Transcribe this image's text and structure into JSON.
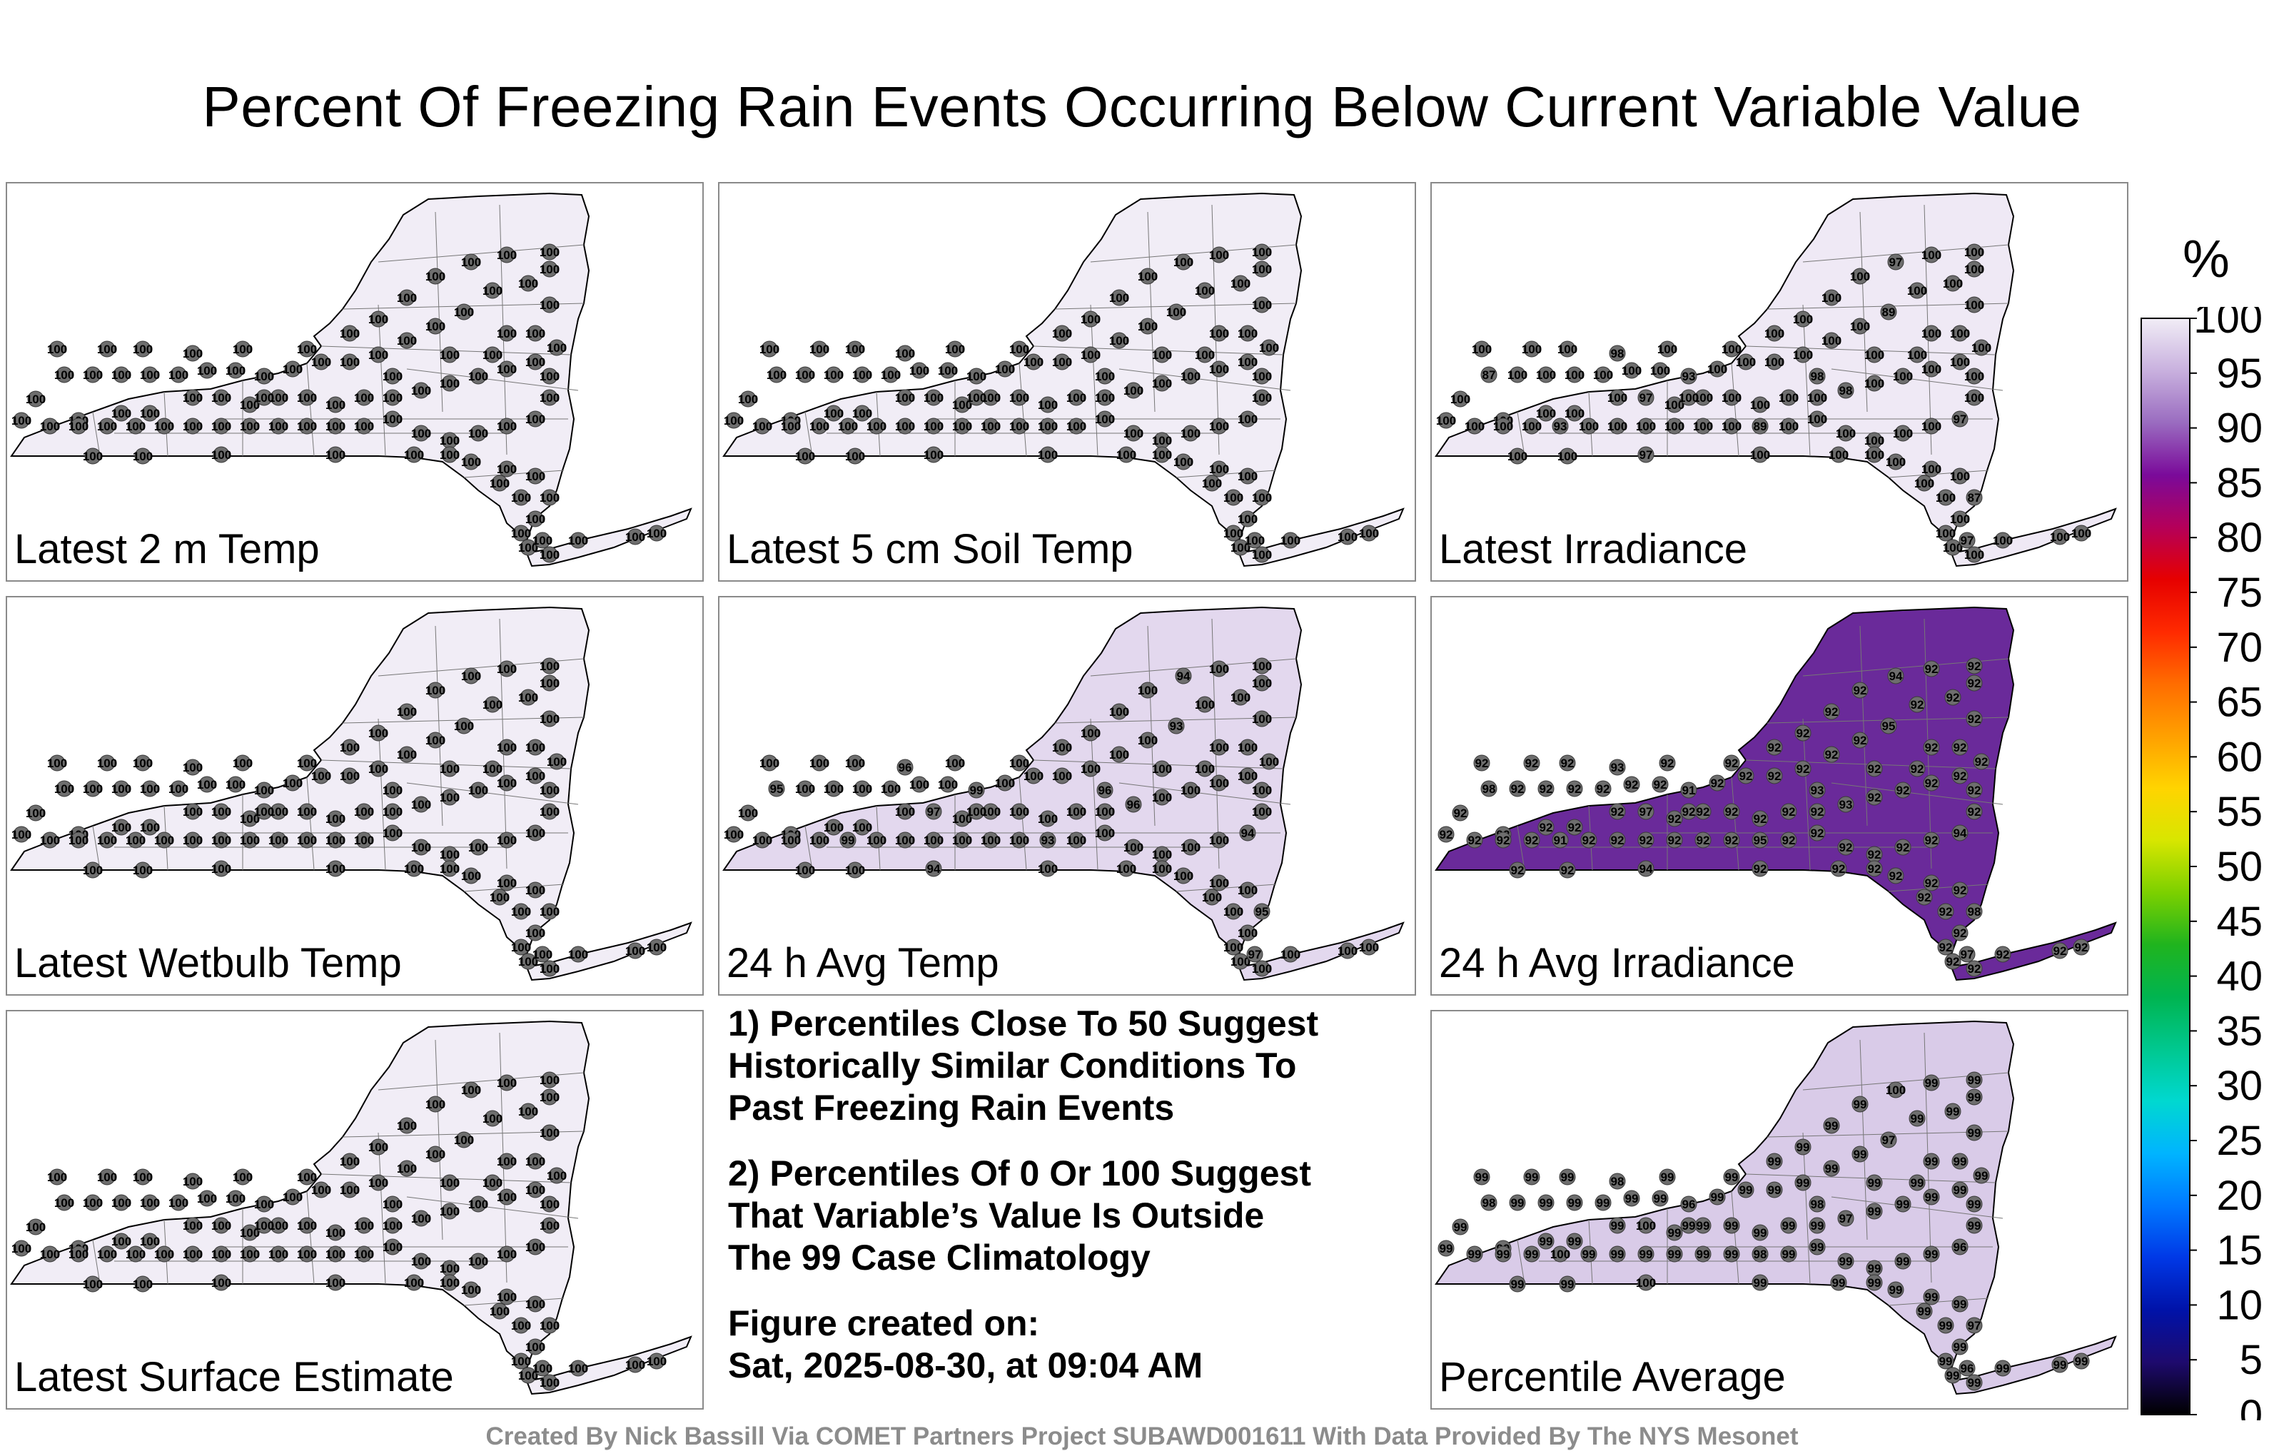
{
  "title": "Percent Of Freezing Rain Events Occurring Below Current Variable Value",
  "panels": [
    {
      "label": "Latest 2 m Temp",
      "fill": "#f1edf6",
      "sites": "100"
    },
    {
      "label": "Latest 5 cm Soil Temp",
      "fill": "#f1edf6",
      "sites": "100"
    },
    {
      "label": "Latest Irradiance",
      "fill": "#efe9f5",
      "sites": "100",
      "outliers": [
        "98",
        "97",
        "89",
        "93",
        "87",
        "97"
      ]
    },
    {
      "label": "Latest Wetbulb Temp",
      "fill": "#f1edf6",
      "sites": "100"
    },
    {
      "label": "24 h Avg Temp",
      "fill": "#e3d8ee",
      "sites": "100",
      "outliers": [
        "96",
        "94",
        "93",
        "99",
        "95",
        "97"
      ]
    },
    {
      "label": "24 h Avg Irradiance",
      "fill": "#6a2a9a",
      "sites": "92",
      "outliers": [
        "93",
        "94",
        "95",
        "91",
        "98",
        "97"
      ]
    },
    {
      "label": "Latest Surface Estimate",
      "fill": "#f1edf6",
      "sites": "100"
    },
    {
      "label": "Percentile Average",
      "fill": "#d9cbe8",
      "sites": "99",
      "outliers": [
        "98",
        "100",
        "97",
        "96"
      ]
    }
  ],
  "notes": {
    "line1": "1) Percentiles Close To 50 Suggest",
    "line2": "Historically Similar Conditions To",
    "line3": "Past Freezing Rain Events",
    "line4": "2) Percentiles Of 0 Or 100 Suggest",
    "line5": "That Variable’s Value Is Outside",
    "line6": "The 99 Case Climatology",
    "line7": "Figure created on:",
    "line8": "Sat, 2025-08-30, at 09:04 AM"
  },
  "colorbar": {
    "unit": "%",
    "ticks": [
      "100",
      "95",
      "90",
      "85",
      "80",
      "75",
      "70",
      "65",
      "60",
      "55",
      "50",
      "45",
      "40",
      "35",
      "30",
      "25",
      "20",
      "15",
      "10",
      "5",
      "0"
    ],
    "colors": [
      "#000000",
      "#1e0a6e",
      "#0012a8",
      "#0038e6",
      "#0078ff",
      "#00b4ff",
      "#00d8d0",
      "#00c890",
      "#00b450",
      "#20b41e",
      "#7cd000",
      "#d8e600",
      "#ffd400",
      "#ffa000",
      "#ff6c00",
      "#ff2a00",
      "#e60000",
      "#b4005a",
      "#7a0a9a",
      "#9a6cc0",
      "#c8b0de",
      "#f1edf6"
    ]
  },
  "footer": "Created By Nick Bassill Via COMET Partners Project SUBAWD001611 With Data Provided By The NYS Mesonet"
}
